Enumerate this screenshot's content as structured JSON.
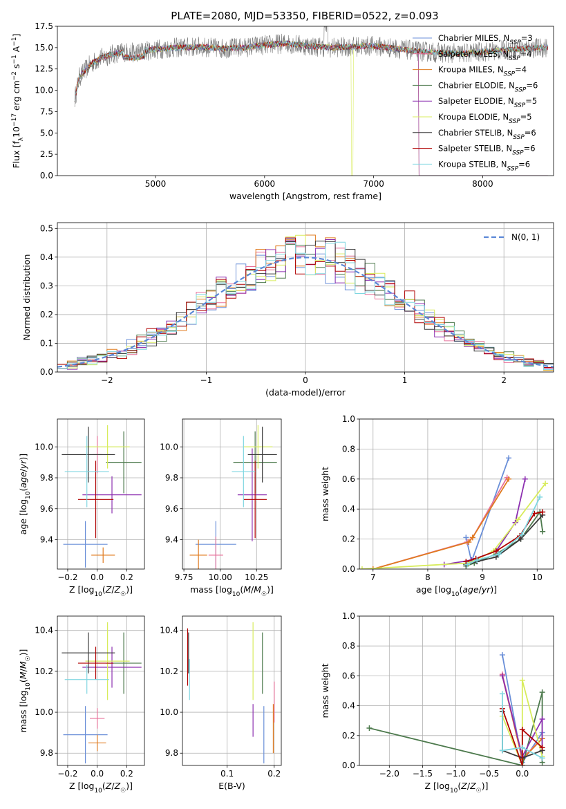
{
  "figure_title": "PLATE=2080, MJD=53350, FIBERID=0522, z=0.093",
  "colors": {
    "chabrier_miles": "#6a8fd8",
    "salpeter_miles": "#e8719a",
    "kroupa_miles": "#e07b1f",
    "chabrier_elodie": "#4d7a4d",
    "salpeter_elodie": "#8c2fb0",
    "kroupa_elodie": "#d8ec5c",
    "chabrier_stelib": "#3a3a3a",
    "salpeter_stelib": "#b00000",
    "kroupa_stelib": "#7fd6e0"
  },
  "chart_data": [
    {
      "id": "spectrum",
      "type": "line",
      "title": "PLATE=2080, MJD=53350, FIBERID=0522, z=0.093",
      "xlabel": "wavelength [Angstrom, rest frame]",
      "ylabel": "Flux [fλ10⁻¹⁷ erg cm⁻² s⁻¹ A⁻¹]",
      "xlim": [
        4100,
        8650
      ],
      "ylim": [
        0,
        17.5
      ],
      "xticks": [
        5000,
        6000,
        7000,
        8000
      ],
      "yticks": [
        0.0,
        2.5,
        5.0,
        7.5,
        10.0,
        12.5,
        15.0,
        17.5
      ],
      "grid": false,
      "legend": "right",
      "legend_labels": [
        "Chabrier MILES, N_SSP=3",
        "Salpeter MILES, N_SSP=4",
        "Kroupa MILES, N_SSP=4",
        "Chabrier ELODIE, N_SSP=6",
        "Salpeter ELODIE, N_SSP=5",
        "Kroupa ELODIE, N_SSP=5",
        "Chabrier STELIB, N_SSP=6",
        "Salpeter STELIB, N_SSP=6",
        "Kroupa STELIB, N_SSP=6"
      ],
      "continuum": {
        "x": [
          4260,
          4300,
          4400,
          4500,
          4600,
          4700,
          4800,
          5000,
          5200,
          5400,
          5600,
          5800,
          6000,
          6200,
          6400,
          6600,
          6800,
          7000,
          7200,
          7400,
          7600,
          7800,
          8000,
          8200,
          8400,
          8600
        ],
        "y": [
          9.0,
          11.5,
          13.0,
          13.8,
          14.2,
          14.5,
          14.4,
          14.8,
          15.0,
          15.1,
          14.9,
          15.0,
          15.3,
          15.5,
          15.2,
          15.0,
          15.1,
          15.2,
          14.9,
          14.6,
          14.4,
          14.3,
          14.5,
          14.7,
          14.9,
          15.0
        ]
      }
    },
    {
      "id": "residuals",
      "type": "line",
      "xlabel": "(data-model)/error",
      "ylabel": "Normed distribution",
      "xlim": [
        -2.5,
        2.5
      ],
      "ylim": [
        0,
        0.52
      ],
      "xticks": [
        -2,
        -1,
        0,
        1,
        2
      ],
      "yticks": [
        0.0,
        0.1,
        0.2,
        0.3,
        0.4,
        0.5
      ],
      "grid": true,
      "legend": "top-right",
      "gaussian_label": "N(0, 1)",
      "bin_width": 0.1
    },
    {
      "id": "z_age",
      "type": "scatter",
      "xlabel": "Z [log10(Z/Z☉)]",
      "ylabel": "age  [log10(age/yr)]",
      "xlim": [
        -0.27,
        0.32
      ],
      "ylim": [
        9.21,
        10.18
      ],
      "xticks": [
        -0.2,
        0.0,
        0.2
      ],
      "yticks": [
        9.4,
        9.6,
        9.8,
        10.0
      ],
      "grid": true,
      "points": [
        {
          "series": "chabrier_miles",
          "x": -0.08,
          "xerr": 0.15,
          "y": 9.37,
          "yerr": 0.15
        },
        {
          "series": "salpeter_miles",
          "x": 0.0,
          "xerr": 0.03,
          "y": 9.95,
          "yerr": 0.12
        },
        {
          "series": "kroupa_miles",
          "x": 0.04,
          "xerr": 0.08,
          "y": 9.3,
          "yerr": 0.05
        },
        {
          "series": "chabrier_elodie",
          "x": 0.18,
          "xerr": 0.12,
          "y": 9.9,
          "yerr": 0.2
        },
        {
          "series": "salpeter_elodie",
          "x": 0.1,
          "xerr": 0.2,
          "y": 9.69,
          "yerr": 0.12
        },
        {
          "series": "kroupa_elodie",
          "x": 0.07,
          "xerr": 0.15,
          "y": 10.0,
          "yerr": 0.14
        },
        {
          "series": "chabrier_stelib",
          "x": -0.06,
          "xerr": 0.18,
          "y": 9.95,
          "yerr": 0.18
        },
        {
          "series": "salpeter_stelib",
          "x": -0.01,
          "xerr": 0.12,
          "y": 9.66,
          "yerr": 0.25
        },
        {
          "series": "kroupa_stelib",
          "x": -0.07,
          "xerr": 0.15,
          "y": 9.84,
          "yerr": 0.23
        }
      ]
    },
    {
      "id": "mass_age",
      "type": "scatter",
      "xlabel": "mass [log10(M/M☉)]",
      "ylabel": "",
      "xlim": [
        9.74,
        10.42
      ],
      "ylim": [
        9.21,
        10.18
      ],
      "xticks": [
        9.75,
        10.0,
        10.25
      ],
      "yticks": [
        9.4,
        9.6,
        9.8,
        10.0
      ],
      "grid": true,
      "points": [
        {
          "series": "chabrier_miles",
          "x": 9.97,
          "xerr": 0.14,
          "y": 9.37,
          "yerr": 0.15
        },
        {
          "series": "salpeter_miles",
          "x": 9.97,
          "xerr": 0.05,
          "y": 9.3,
          "yerr": 0.12
        },
        {
          "series": "kroupa_miles",
          "x": 9.85,
          "xerr": 0.06,
          "y": 9.3,
          "yerr": 0.1
        },
        {
          "series": "chabrier_elodie",
          "x": 10.24,
          "xerr": 0.15,
          "y": 9.9,
          "yerr": 0.2
        },
        {
          "series": "salpeter_elodie",
          "x": 10.22,
          "xerr": 0.1,
          "y": 9.69,
          "yerr": 0.3
        },
        {
          "series": "kroupa_elodie",
          "x": 10.26,
          "xerr": 0.1,
          "y": 10.0,
          "yerr": 0.14
        },
        {
          "series": "chabrier_stelib",
          "x": 10.29,
          "xerr": 0.1,
          "y": 9.95,
          "yerr": 0.18
        },
        {
          "series": "salpeter_stelib",
          "x": 10.24,
          "xerr": 0.08,
          "y": 9.66,
          "yerr": 0.25
        },
        {
          "series": "kroupa_stelib",
          "x": 10.16,
          "xerr": 0.08,
          "y": 9.84,
          "yerr": 0.23
        }
      ]
    },
    {
      "id": "age_weight",
      "type": "line",
      "xlabel": "age  [log10(age/yr)]",
      "ylabel": "mass weight",
      "xlim": [
        6.75,
        10.3
      ],
      "ylim": [
        0,
        1
      ],
      "xticks": [
        7,
        8,
        9,
        10
      ],
      "yticks": [
        0.0,
        0.2,
        0.4,
        0.6,
        0.8,
        1.0
      ],
      "grid": true,
      "series": [
        {
          "key": "chabrier_miles",
          "x": [
            8.7,
            8.8,
            9.48
          ],
          "y": [
            0.21,
            0.05,
            0.74
          ]
        },
        {
          "key": "salpeter_miles",
          "x": [
            7.0,
            8.72,
            8.82,
            9.45
          ],
          "y": [
            0.0,
            0.18,
            0.21,
            0.61
          ]
        },
        {
          "key": "kroupa_miles",
          "x": [
            7.0,
            8.75,
            8.82,
            9.48
          ],
          "y": [
            0.0,
            0.18,
            0.21,
            0.6
          ]
        },
        {
          "key": "chabrier_elodie",
          "x": [
            8.7,
            8.85,
            9.25,
            9.7,
            10.05,
            10.1
          ],
          "y": [
            0.02,
            0.04,
            0.1,
            0.2,
            0.38,
            0.25
          ]
        },
        {
          "key": "salpeter_elodie",
          "x": [
            8.3,
            8.8,
            9.25,
            9.6,
            9.78
          ],
          "y": [
            0.03,
            0.06,
            0.12,
            0.31,
            0.6
          ]
        },
        {
          "key": "kroupa_elodie",
          "x": [
            6.8,
            8.75,
            9.2,
            9.65,
            10.15
          ],
          "y": [
            0.0,
            0.04,
            0.12,
            0.33,
            0.57
          ]
        },
        {
          "key": "chabrier_stelib",
          "x": [
            8.7,
            8.9,
            9.25,
            9.7,
            10.1
          ],
          "y": [
            0.03,
            0.05,
            0.08,
            0.2,
            0.36
          ]
        },
        {
          "key": "salpeter_stelib",
          "x": [
            8.7,
            8.88,
            9.25,
            9.68,
            9.95,
            10.1
          ],
          "y": [
            0.05,
            0.07,
            0.12,
            0.22,
            0.37,
            0.38
          ]
        },
        {
          "key": "kroupa_stelib",
          "x": [
            8.72,
            8.9,
            9.3,
            9.72,
            10.05
          ],
          "y": [
            0.03,
            0.06,
            0.1,
            0.23,
            0.48
          ]
        }
      ]
    },
    {
      "id": "z_mass",
      "type": "scatter",
      "xlabel": "Z [log10(Z/Z☉)]",
      "ylabel": "mass [log10(M/M☉)]",
      "xlim": [
        -0.27,
        0.32
      ],
      "ylim": [
        9.74,
        10.47
      ],
      "xticks": [
        -0.2,
        0.0,
        0.2
      ],
      "yticks": [
        9.8,
        10.0,
        10.2,
        10.4
      ],
      "grid": true,
      "points": [
        {
          "series": "chabrier_miles",
          "x": -0.08,
          "xerr": 0.15,
          "y": 9.89,
          "yerr": 0.14
        },
        {
          "series": "salpeter_miles",
          "x": 0.0,
          "xerr": 0.05,
          "y": 9.97,
          "yerr": 0.05
        },
        {
          "series": "kroupa_miles",
          "x": 0.0,
          "xerr": 0.06,
          "y": 9.85,
          "yerr": 0.04
        },
        {
          "series": "chabrier_elodie",
          "x": 0.18,
          "xerr": 0.12,
          "y": 10.24,
          "yerr": 0.15
        },
        {
          "series": "salpeter_elodie",
          "x": 0.1,
          "xerr": 0.2,
          "y": 10.22,
          "yerr": 0.1
        },
        {
          "series": "kroupa_elodie",
          "x": 0.07,
          "xerr": 0.15,
          "y": 10.25,
          "yerr": 0.19
        },
        {
          "series": "chabrier_stelib",
          "x": -0.06,
          "xerr": 0.18,
          "y": 10.29,
          "yerr": 0.1
        },
        {
          "series": "salpeter_stelib",
          "x": -0.01,
          "xerr": 0.12,
          "y": 10.24,
          "yerr": 0.08
        },
        {
          "series": "kroupa_stelib",
          "x": -0.07,
          "xerr": 0.15,
          "y": 10.16,
          "yerr": 0.07
        }
      ]
    },
    {
      "id": "ebv_mass",
      "type": "scatter",
      "xlabel": "E(B-V)",
      "ylabel": "",
      "xlim": [
        0.005,
        0.215
      ],
      "ylim": [
        9.74,
        10.47
      ],
      "xticks": [
        0.1,
        0.2
      ],
      "yticks": [
        9.8,
        10.0,
        10.2,
        10.4
      ],
      "grid": true,
      "points": [
        {
          "series": "chabrier_miles",
          "x": 0.178,
          "xerr": 0.0,
          "y": 9.89,
          "yerr": 0.14
        },
        {
          "series": "salpeter_miles",
          "x": 0.2,
          "xerr": 0.0,
          "y": 10.05,
          "yerr": 0.1
        },
        {
          "series": "kroupa_miles",
          "x": 0.198,
          "xerr": 0.0,
          "y": 9.92,
          "yerr": 0.12
        },
        {
          "series": "chabrier_elodie",
          "x": 0.175,
          "xerr": 0.0,
          "y": 10.24,
          "yerr": 0.15
        },
        {
          "series": "salpeter_elodie",
          "x": 0.155,
          "xerr": 0.0,
          "y": 9.96,
          "yerr": 0.08
        },
        {
          "series": "kroupa_elodie",
          "x": 0.155,
          "xerr": 0.0,
          "y": 10.25,
          "yerr": 0.19
        },
        {
          "series": "chabrier_stelib",
          "x": 0.018,
          "xerr": 0.0,
          "y": 10.29,
          "yerr": 0.1
        },
        {
          "series": "salpeter_stelib",
          "x": 0.016,
          "xerr": 0.0,
          "y": 10.27,
          "yerr": 0.14
        },
        {
          "series": "kroupa_stelib",
          "x": 0.02,
          "xerr": 0.0,
          "y": 10.16,
          "yerr": 0.1
        }
      ]
    },
    {
      "id": "z_weight",
      "type": "line",
      "xlabel": "Z [log10(Z/Z☉)]",
      "ylabel": "mass weight",
      "xlim": [
        -2.45,
        0.47
      ],
      "ylim": [
        0,
        1
      ],
      "xticks": [
        -2.0,
        -1.5,
        -1.0,
        -0.5,
        0.0
      ],
      "yticks": [
        0.0,
        0.2,
        0.4,
        0.6,
        0.8,
        1.0
      ],
      "grid": true,
      "series": [
        {
          "key": "chabrier_miles",
          "x": [
            -0.3,
            0.0,
            0.3
          ],
          "y": [
            0.74,
            0.02,
            0.22
          ]
        },
        {
          "key": "salpeter_miles",
          "x": [
            -0.3,
            0.0,
            0.3
          ],
          "y": [
            0.61,
            0.05,
            0.18
          ]
        },
        {
          "key": "kroupa_miles",
          "x": [
            -0.3,
            0.0,
            0.3
          ],
          "y": [
            0.6,
            0.04,
            0.18
          ]
        },
        {
          "key": "chabrier_elodie",
          "x": [
            -2.3,
            0.0,
            0.3,
            0.3
          ],
          "y": [
            0.25,
            0.0,
            0.49,
            0.02
          ]
        },
        {
          "key": "salpeter_elodie",
          "x": [
            -0.3,
            0.0,
            0.3,
            0.3
          ],
          "y": [
            0.6,
            0.06,
            0.31,
            0.05
          ]
        },
        {
          "key": "kroupa_elodie",
          "x": [
            -0.3,
            0.0,
            0.0,
            0.3
          ],
          "y": [
            0.33,
            0.0,
            0.57,
            0.06
          ]
        },
        {
          "key": "chabrier_stelib",
          "x": [
            -0.3,
            -0.3,
            0.0,
            0.3
          ],
          "y": [
            0.36,
            0.1,
            0.05,
            0.1
          ]
        },
        {
          "key": "salpeter_stelib",
          "x": [
            -0.3,
            0.0,
            0.0,
            0.3
          ],
          "y": [
            0.38,
            0.0,
            0.24,
            0.12
          ]
        },
        {
          "key": "kroupa_stelib",
          "x": [
            -0.3,
            -0.3,
            0.0,
            0.3
          ],
          "y": [
            0.48,
            0.1,
            0.12,
            0.05
          ]
        }
      ]
    }
  ]
}
